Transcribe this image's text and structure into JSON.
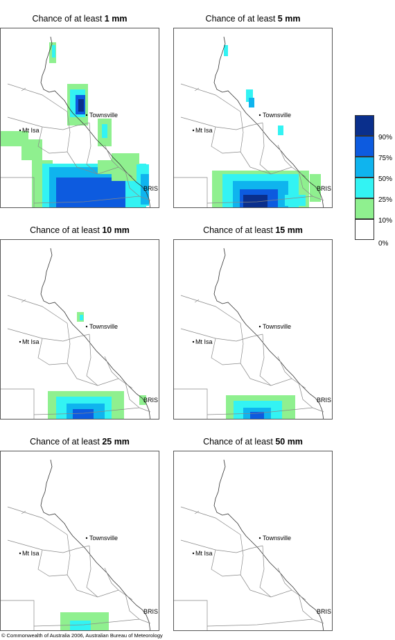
{
  "panels": [
    {
      "prefix": "Chance of at least ",
      "amount": "1 mm"
    },
    {
      "prefix": "Chance of at least ",
      "amount": "5 mm"
    },
    {
      "prefix": "Chance of at least ",
      "amount": "10 mm"
    },
    {
      "prefix": "Chance of at least ",
      "amount": "15 mm"
    },
    {
      "prefix": "Chance of at least ",
      "amount": "25 mm"
    },
    {
      "prefix": "Chance of at least ",
      "amount": "50 mm"
    }
  ],
  "places": {
    "townsville": "Townsville",
    "mt_isa": "Mt Isa",
    "bris": "BRIS"
  },
  "legend": {
    "labels": [
      "90%",
      "75%",
      "50%",
      "25%",
      "10%",
      "0%"
    ],
    "colors": [
      "#0a2f8c",
      "#0d5bdf",
      "#0fb4ee",
      "#33f3f3",
      "#8ff08f",
      "#ffffff"
    ]
  },
  "footer": "© Commonwealth of Australia 2006, Australian Bureau of Meteorology"
}
